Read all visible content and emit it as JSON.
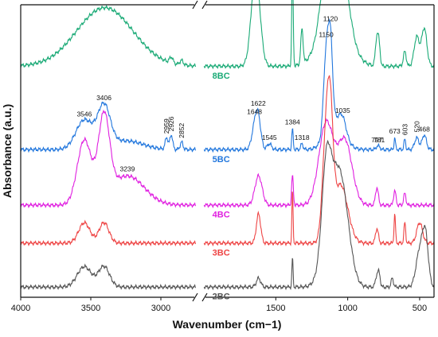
{
  "chart_data": {
    "type": "line",
    "title": "",
    "xlabel": "Wavenumber (cm−1)",
    "ylabel": "Absorbance (a.u.)",
    "x_axis": {
      "broken": true,
      "left_segment": [
        4000,
        2750
      ],
      "right_segment": [
        2000,
        400
      ],
      "ticks": [
        4000,
        3500,
        3000,
        1500,
        1000,
        500
      ],
      "reversed": true
    },
    "grid": false,
    "legend": "inline labels",
    "series": [
      {
        "name": "8BC",
        "color": "#1aaa76",
        "offset": 0.79,
        "peaks": [
          [
            3400,
            0.2,
            200
          ],
          [
            2926,
            0.02,
            12
          ],
          [
            2852,
            0.015,
            12
          ],
          [
            1640,
            0.32,
            30
          ],
          [
            1384,
            0.33,
            5
          ],
          [
            1318,
            0.12,
            8
          ],
          [
            1150,
            0.17,
            40
          ],
          [
            1090,
            0.22,
            90
          ],
          [
            1020,
            0.12,
            40
          ],
          [
            797,
            0.1,
            10
          ],
          [
            781,
            0.06,
            8
          ],
          [
            603,
            0.05,
            10
          ],
          [
            520,
            0.1,
            18
          ],
          [
            468,
            0.13,
            18
          ]
        ]
      },
      {
        "name": "5BC",
        "color": "#2277dd",
        "offset": 0.505,
        "peaks": [
          [
            3546,
            0.1,
            60
          ],
          [
            3406,
            0.14,
            45
          ],
          [
            3250,
            0.03,
            120
          ],
          [
            2959,
            0.04,
            10
          ],
          [
            2926,
            0.05,
            10
          ],
          [
            2852,
            0.025,
            10
          ],
          [
            1648,
            0.07,
            20
          ],
          [
            1622,
            0.1,
            18
          ],
          [
            1545,
            0.02,
            15
          ],
          [
            1384,
            0.07,
            5
          ],
          [
            1318,
            0.02,
            8
          ],
          [
            1150,
            0.27,
            18
          ],
          [
            1120,
            0.27,
            15
          ],
          [
            1090,
            0.1,
            60
          ],
          [
            1035,
            0.05,
            25
          ],
          [
            797,
            0.01,
            8
          ],
          [
            781,
            0.01,
            8
          ],
          [
            673,
            0.04,
            5
          ],
          [
            603,
            0.035,
            6
          ],
          [
            520,
            0.04,
            15
          ],
          [
            468,
            0.05,
            15
          ]
        ]
      },
      {
        "name": "4BC",
        "color": "#e020e0",
        "offset": 0.315,
        "peaks": [
          [
            3546,
            0.22,
            50
          ],
          [
            3406,
            0.28,
            40
          ],
          [
            3239,
            0.1,
            120
          ],
          [
            1620,
            0.1,
            25
          ],
          [
            1384,
            0.1,
            6
          ],
          [
            1150,
            0.28,
            50
          ],
          [
            1020,
            0.22,
            50
          ],
          [
            797,
            0.06,
            10
          ],
          [
            673,
            0.05,
            8
          ],
          [
            603,
            0.04,
            8
          ]
        ]
      },
      {
        "name": "3BC",
        "color": "#ee4444",
        "offset": 0.185,
        "peaks": [
          [
            3546,
            0.07,
            40
          ],
          [
            3406,
            0.07,
            35
          ],
          [
            1620,
            0.1,
            15
          ],
          [
            1384,
            0.18,
            4
          ],
          [
            1150,
            0.35,
            25
          ],
          [
            1120,
            0.3,
            20
          ],
          [
            1050,
            0.2,
            50
          ],
          [
            797,
            0.05,
            10
          ],
          [
            673,
            0.1,
            5
          ],
          [
            603,
            0.07,
            6
          ],
          [
            500,
            0.07,
            20
          ]
        ]
      },
      {
        "name": "2BC",
        "color": "#555555",
        "offset": 0.035,
        "peaks": [
          [
            3546,
            0.07,
            50
          ],
          [
            3406,
            0.07,
            40
          ],
          [
            1620,
            0.03,
            15
          ],
          [
            1384,
            0.1,
            4
          ],
          [
            1150,
            0.25,
            30
          ],
          [
            1100,
            0.3,
            60
          ],
          [
            1030,
            0.2,
            50
          ],
          [
            797,
            0.04,
            10
          ],
          [
            781,
            0.04,
            8
          ],
          [
            690,
            0.03,
            8
          ],
          [
            500,
            0.12,
            25
          ],
          [
            460,
            0.17,
            20
          ]
        ]
      }
    ],
    "annotations": [
      {
        "text": "3546",
        "x": 3546,
        "series": "5BC"
      },
      {
        "text": "3406",
        "x": 3406,
        "series": "5BC"
      },
      {
        "text": "3239",
        "x": 3239,
        "series": "4BC"
      },
      {
        "text": "2959",
        "x": 2959,
        "series": "5BC",
        "rotated": true
      },
      {
        "text": "2926",
        "x": 2926,
        "series": "5BC",
        "rotated": true
      },
      {
        "text": "2852",
        "x": 2852,
        "series": "5BC",
        "rotated": true
      },
      {
        "text": "1648",
        "x": 1648,
        "series": "5BC"
      },
      {
        "text": "1622",
        "x": 1622,
        "series": "5BC"
      },
      {
        "text": "1545",
        "x": 1545,
        "series": "5BC"
      },
      {
        "text": "1384",
        "x": 1384,
        "series": "5BC"
      },
      {
        "text": "1318",
        "x": 1318,
        "series": "5BC"
      },
      {
        "text": "1150",
        "x": 1150,
        "series": "5BC"
      },
      {
        "text": "1120",
        "x": 1120,
        "series": "5BC"
      },
      {
        "text": "1035",
        "x": 1035,
        "series": "5BC"
      },
      {
        "text": "797",
        "x": 797,
        "series": "5BC"
      },
      {
        "text": "781",
        "x": 781,
        "series": "5BC"
      },
      {
        "text": "673",
        "x": 673,
        "series": "5BC"
      },
      {
        "text": "603",
        "x": 603,
        "series": "5BC",
        "rotated": true
      },
      {
        "text": "520",
        "x": 520,
        "series": "5BC",
        "rotated": true
      },
      {
        "text": "468",
        "x": 468,
        "series": "5BC"
      }
    ]
  }
}
